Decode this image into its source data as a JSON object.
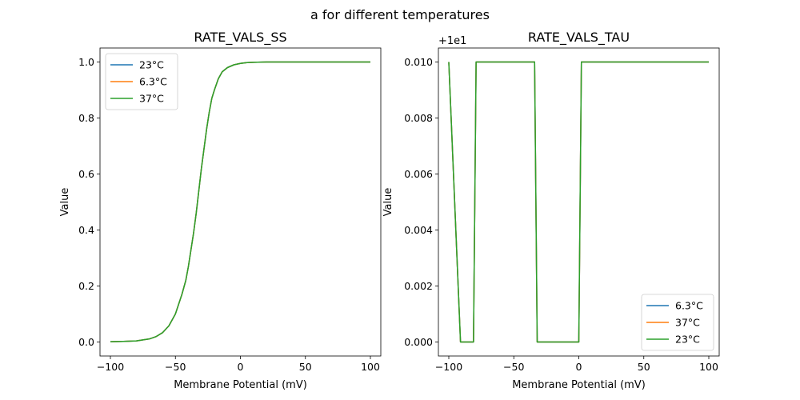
{
  "figure": {
    "suptitle": "a for different temperatures"
  },
  "chart_data": [
    {
      "type": "line",
      "title": "RATE_VALS_SS",
      "xlabel": "Membrane Potential (mV)",
      "ylabel": "Value",
      "xlim": [
        -108,
        108
      ],
      "ylim": [
        -0.05,
        1.05
      ],
      "xticks": [
        -100,
        -50,
        0,
        50,
        100
      ],
      "yticks": [
        0.0,
        0.2,
        0.4,
        0.6,
        0.8,
        1.0
      ],
      "xtick_labels": [
        "−100",
        "−50",
        "0",
        "50",
        "100"
      ],
      "ytick_labels": [
        "0.0",
        "0.2",
        "0.4",
        "0.6",
        "0.8",
        "1.0"
      ],
      "offset_label": "",
      "legend_position": "upper-left",
      "x": [
        -100,
        -90,
        -80,
        -70,
        -65,
        -60,
        -55,
        -50,
        -45,
        -42,
        -40,
        -38,
        -36,
        -34,
        -32,
        -30,
        -28,
        -26,
        -24,
        -22,
        -20,
        -17,
        -14,
        -10,
        -5,
        0,
        5,
        10,
        20,
        30,
        50,
        75,
        100
      ],
      "series": [
        {
          "name": "23°C",
          "color": "#1f77b4",
          "values": [
            0.001,
            0.002,
            0.004,
            0.011,
            0.019,
            0.033,
            0.058,
            0.1,
            0.17,
            0.22,
            0.27,
            0.33,
            0.39,
            0.46,
            0.54,
            0.62,
            0.69,
            0.76,
            0.82,
            0.87,
            0.9,
            0.94,
            0.965,
            0.98,
            0.99,
            0.995,
            0.998,
            0.999,
            1.0,
            1.0,
            1.0,
            1.0,
            1.0
          ]
        },
        {
          "name": "6.3°C",
          "color": "#ff7f0e",
          "values": [
            0.001,
            0.002,
            0.004,
            0.011,
            0.019,
            0.033,
            0.058,
            0.1,
            0.17,
            0.22,
            0.27,
            0.33,
            0.39,
            0.46,
            0.54,
            0.62,
            0.69,
            0.76,
            0.82,
            0.87,
            0.9,
            0.94,
            0.965,
            0.98,
            0.99,
            0.995,
            0.998,
            0.999,
            1.0,
            1.0,
            1.0,
            1.0,
            1.0
          ]
        },
        {
          "name": "37°C",
          "color": "#2ca02c",
          "values": [
            0.001,
            0.002,
            0.004,
            0.011,
            0.019,
            0.033,
            0.058,
            0.1,
            0.17,
            0.22,
            0.27,
            0.33,
            0.39,
            0.46,
            0.54,
            0.62,
            0.69,
            0.76,
            0.82,
            0.87,
            0.9,
            0.94,
            0.965,
            0.98,
            0.99,
            0.995,
            0.998,
            0.999,
            1.0,
            1.0,
            1.0,
            1.0,
            1.0
          ]
        }
      ]
    },
    {
      "type": "line",
      "title": "RATE_VALS_TAU",
      "xlabel": "Membrane Potential (mV)",
      "ylabel": "Value",
      "xlim": [
        -108,
        108
      ],
      "ylim": [
        -0.0005,
        0.0105
      ],
      "xticks": [
        -100,
        -50,
        0,
        50,
        100
      ],
      "yticks": [
        0.0,
        0.002,
        0.004,
        0.006,
        0.008,
        0.01
      ],
      "xtick_labels": [
        "−100",
        "−50",
        "0",
        "50",
        "100"
      ],
      "ytick_labels": [
        "0.000",
        "0.002",
        "0.004",
        "0.006",
        "0.008",
        "0.010"
      ],
      "offset_label": "+1e1",
      "legend_position": "lower-right",
      "x": [
        -100,
        -91,
        -81,
        -79,
        -34,
        -32,
        0,
        2,
        100
      ],
      "series": [
        {
          "name": "6.3°C",
          "color": "#1f77b4",
          "values": [
            0.01,
            0.0,
            0.0,
            0.01,
            0.01,
            0.0,
            0.0,
            0.01,
            0.01
          ]
        },
        {
          "name": "37°C",
          "color": "#ff7f0e",
          "values": [
            0.01,
            0.0,
            0.0,
            0.01,
            0.01,
            0.0,
            0.0,
            0.01,
            0.01
          ]
        },
        {
          "name": "23°C",
          "color": "#2ca02c",
          "values": [
            0.01,
            0.0,
            0.0,
            0.01,
            0.01,
            0.0,
            0.0,
            0.01,
            0.01
          ]
        }
      ]
    }
  ]
}
